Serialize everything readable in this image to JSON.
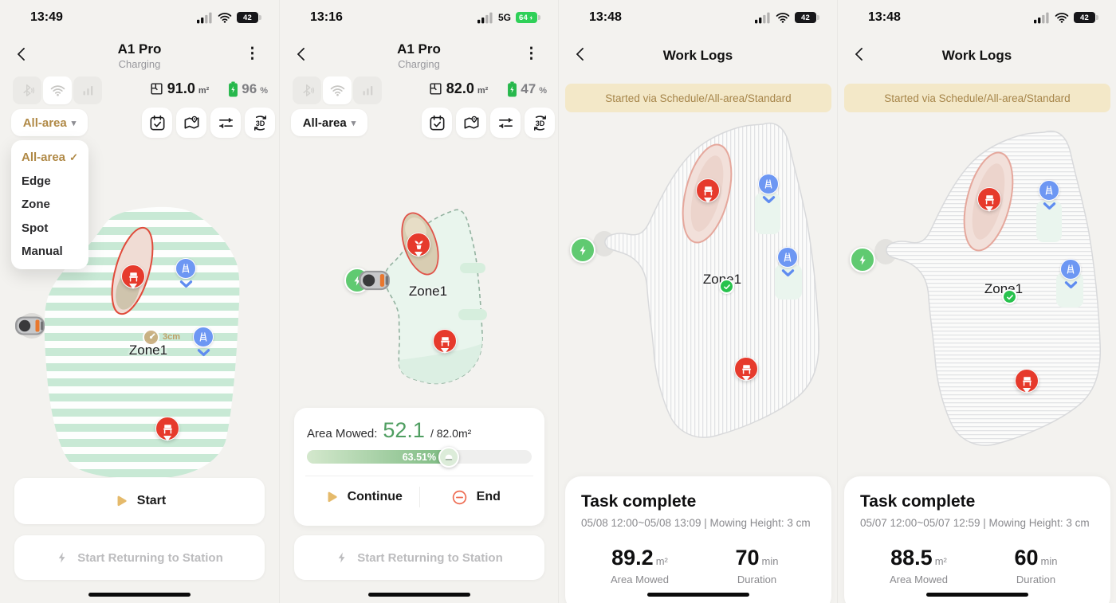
{
  "glyphs": {
    "ellipsis": "⋮",
    "caret": "▾",
    "check": "✓"
  },
  "colors": {
    "accent_gold": "#b08946",
    "battery_green": "#2fd058",
    "progress_green": "#7cba81",
    "marker_red": "#e63a2c",
    "marker_blue": "#6d97f3",
    "banner_bg": "#f3e8c8",
    "banner_text": "#a6854a"
  },
  "panel1": {
    "status": {
      "time": "13:49",
      "battery": "42"
    },
    "header": {
      "title": "A1 Pro",
      "subtitle": "Charging"
    },
    "stats": {
      "area_value": "91.0",
      "area_unit": "m²",
      "battery_value": "96",
      "battery_unit": "%"
    },
    "mode": {
      "label": "All-area"
    },
    "dropdown": {
      "items": [
        "All-area",
        "Edge",
        "Zone",
        "Spot",
        "Manual"
      ]
    },
    "map": {
      "zone": "Zone1",
      "height": "3cm"
    },
    "actions": {
      "start": "Start",
      "return": "Start Returning to Station"
    }
  },
  "panel2": {
    "status": {
      "time": "13:16",
      "network": "5G",
      "battery": "64"
    },
    "header": {
      "title": "A1 Pro",
      "subtitle": "Charging"
    },
    "stats": {
      "area_value": "82.0",
      "area_unit": "m²",
      "battery_value": "47",
      "battery_unit": "%"
    },
    "mode": {
      "label": "All-area"
    },
    "map": {
      "zone": "Zone1"
    },
    "progress": {
      "label": "Area Mowed:",
      "value": "52.1",
      "total": "/ 82.0m²",
      "percent_label": "63.51%",
      "percent": 63.51
    },
    "actions": {
      "continue": "Continue",
      "end": "End",
      "return": "Start Returning to Station"
    }
  },
  "panel3": {
    "status": {
      "time": "13:48",
      "battery": "42"
    },
    "header": {
      "title": "Work Logs"
    },
    "banner": "Started via Schedule/All-area/Standard",
    "map": {
      "zone": "Zone1"
    },
    "task": {
      "title": "Task complete",
      "meta": "05/08 12:00~05/08 13:09 | Mowing Height: 3 cm",
      "stats": [
        {
          "value": "89.2",
          "unit": "m²",
          "label": "Area Mowed"
        },
        {
          "value": "70",
          "unit": "min",
          "label": "Duration"
        }
      ]
    }
  },
  "panel4": {
    "status": {
      "time": "13:48",
      "battery": "42"
    },
    "header": {
      "title": "Work Logs"
    },
    "banner": "Started via Schedule/All-area/Standard",
    "map": {
      "zone": "Zone1"
    },
    "task": {
      "title": "Task complete",
      "meta": "05/07 12:00~05/07 12:59 | Mowing Height: 3 cm",
      "stats": [
        {
          "value": "88.5",
          "unit": "m²",
          "label": "Area Mowed"
        },
        {
          "value": "60",
          "unit": "min",
          "label": "Duration"
        }
      ]
    }
  }
}
